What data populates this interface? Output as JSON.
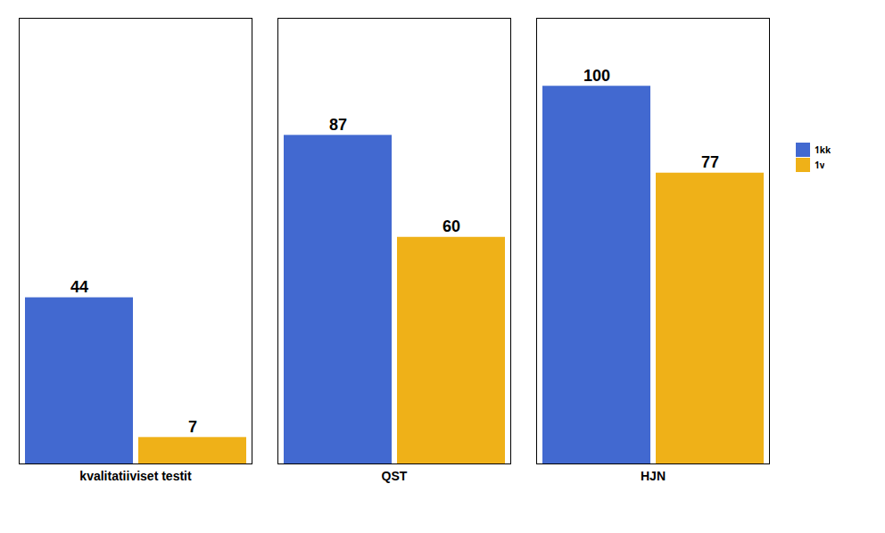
{
  "chart_data": {
    "type": "bar",
    "categories": [
      "kvalitatiiviset testit",
      "QST",
      "HJN"
    ],
    "series": [
      {
        "name": "1kk",
        "values": [
          44,
          87,
          100
        ]
      },
      {
        "name": "1v",
        "values": [
          7,
          60,
          77
        ]
      }
    ],
    "ylim": [
      0,
      118
    ],
    "yticks": [],
    "data_labels": true,
    "tick_labels": "x",
    "grid": false,
    "legend": "right"
  }
}
